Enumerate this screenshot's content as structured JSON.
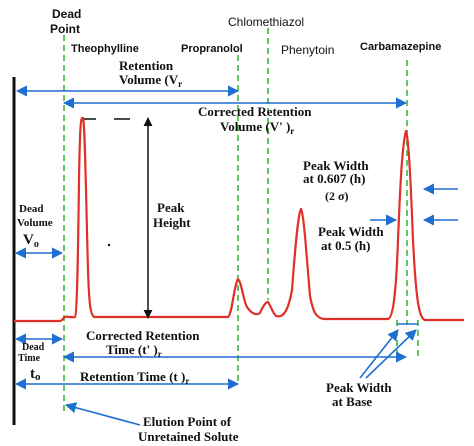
{
  "colors": {
    "trace": "#e0302a",
    "arrow": "#1e6fd0",
    "marker": "#3cb83c",
    "text": "#111111"
  },
  "labels": {
    "dead_point_1": "Dead",
    "dead_point_2": "Point",
    "theophylline": "Theophylline",
    "propranolol": "Propranolol",
    "chlomethiazol": "Chlomethiazol",
    "phenytoin": "Phenytoin",
    "carbamazepine": "Carbamazepine",
    "retention_volume_1": "Retention",
    "retention_volume_2": "Volume (V",
    "retention_volume_sub": "r",
    "corrected_retention_volume_1": "Corrected Retention",
    "corrected_retention_volume_2": "Volume (V' )",
    "corrected_retention_volume_sub": "r",
    "peak_height_1": "Peak",
    "peak_height_2": "Height",
    "peak_width_0607_1": "Peak Width",
    "peak_width_0607_2": "at 0.607 (h)",
    "two_sigma": "(2  σ)",
    "peak_width_05_1": "Peak Width",
    "peak_width_05_2": "at 0.5 (h)",
    "dead_volume_1": "Dead",
    "dead_volume_2": "Volume",
    "dead_volume_sym": "V",
    "dead_volume_sub": "o",
    "dead_time_1": "Dead",
    "dead_time_2": "Time",
    "dead_time_sym": "t",
    "dead_time_sub": "o",
    "corrected_retention_time_1": "Corrected Retention",
    "corrected_retention_time_2": "Time (t' )",
    "corrected_retention_time_sub": "r",
    "retention_time": "Retention Time (t )",
    "retention_time_sub": "r",
    "peak_width_base_1": "Peak Width",
    "peak_width_base_2": "at Base",
    "elution_point_1": "Elution Point of",
    "elution_point_2": "Unretained Solute"
  }
}
